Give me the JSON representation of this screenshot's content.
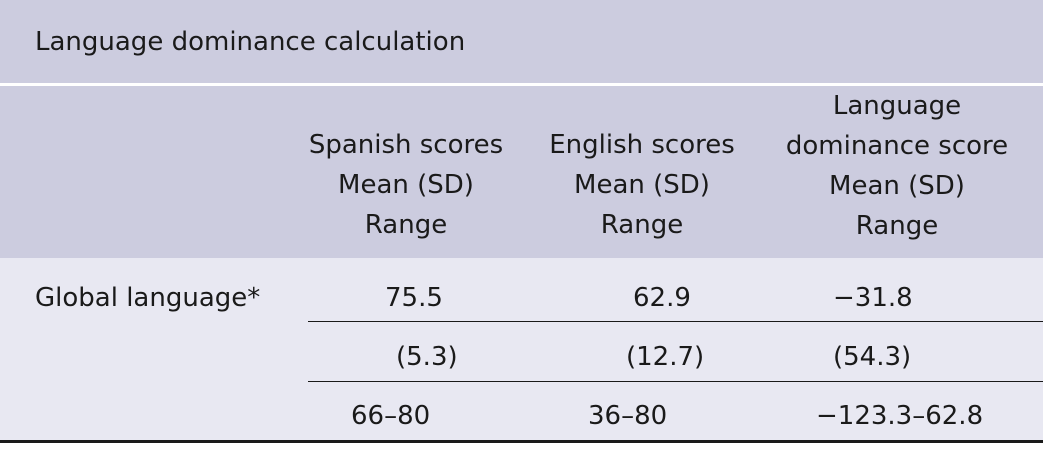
{
  "caption": "Language dominance calculation",
  "headers": {
    "spanish": [
      "Spanish scores",
      "Mean (SD)",
      "Range"
    ],
    "english": [
      "English scores",
      "Mean (SD)",
      "Range"
    ],
    "dominance": [
      "Language",
      "dominance score",
      "Mean (SD)",
      "Range"
    ]
  },
  "rows": {
    "label": "Global language*",
    "mean": {
      "spanish": "75.5",
      "english": "62.9",
      "dominance": "−31.8"
    },
    "sd": {
      "spanish": "(5.3)",
      "english": "(12.7)",
      "dominance": "(54.3)"
    },
    "range": {
      "spanish": "66–80",
      "english": "36–80",
      "dominance": "−123.3–62.8"
    }
  }
}
